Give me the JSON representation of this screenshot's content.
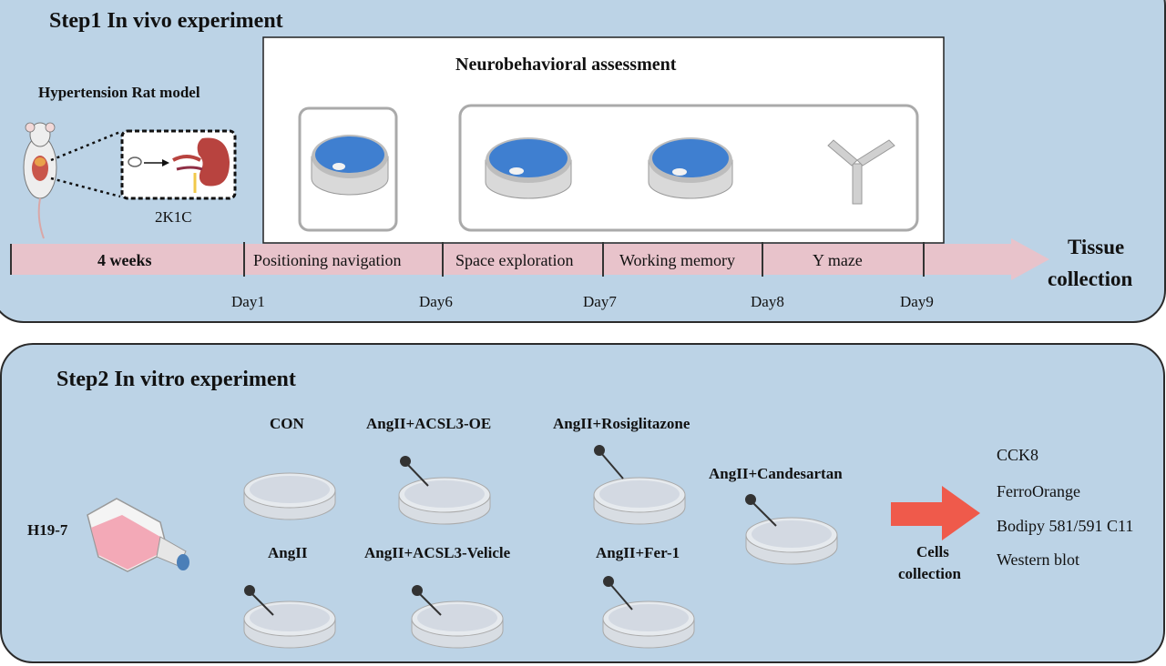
{
  "step1": {
    "title": "Step1 In vivo experiment",
    "model_label": "Hypertension Rat model",
    "surgery_label": "2K1C",
    "assessment_title": "Neurobehavioral assessment",
    "stages": [
      "4 weeks",
      "Positioning navigation",
      "Space exploration",
      "Working memory",
      "Y maze"
    ],
    "days": [
      "Day1",
      "Day6",
      "Day7",
      "Day8",
      "Day9"
    ],
    "end_label_line1": "Tissue",
    "end_label_line2": "collection"
  },
  "step2": {
    "title": "Step2 In vitro experiment",
    "cell_line": "H19-7",
    "groups": {
      "con": "CON",
      "angii": "AngII",
      "acsl3_oe": "AngII+ACSL3-OE",
      "acsl3_vehicle": "AngII+ACSL3-Velicle",
      "rosiglitazone": "AngII+Rosiglitazone",
      "fer1": "AngII+Fer-1",
      "candesartan": "AngII+Candesartan"
    },
    "collection_line1": "Cells",
    "collection_line2": "collection",
    "assays": [
      "CCK8",
      "FerroOrange",
      "Bodipy 581/591 C11",
      "Western blot"
    ]
  },
  "colors": {
    "panel_bg": "#bcd3e6",
    "timeline": "#e8c3cb",
    "water": "#3f7fd0",
    "arrow": "#ef5a4b",
    "flask_media": "#f3a9b7"
  }
}
